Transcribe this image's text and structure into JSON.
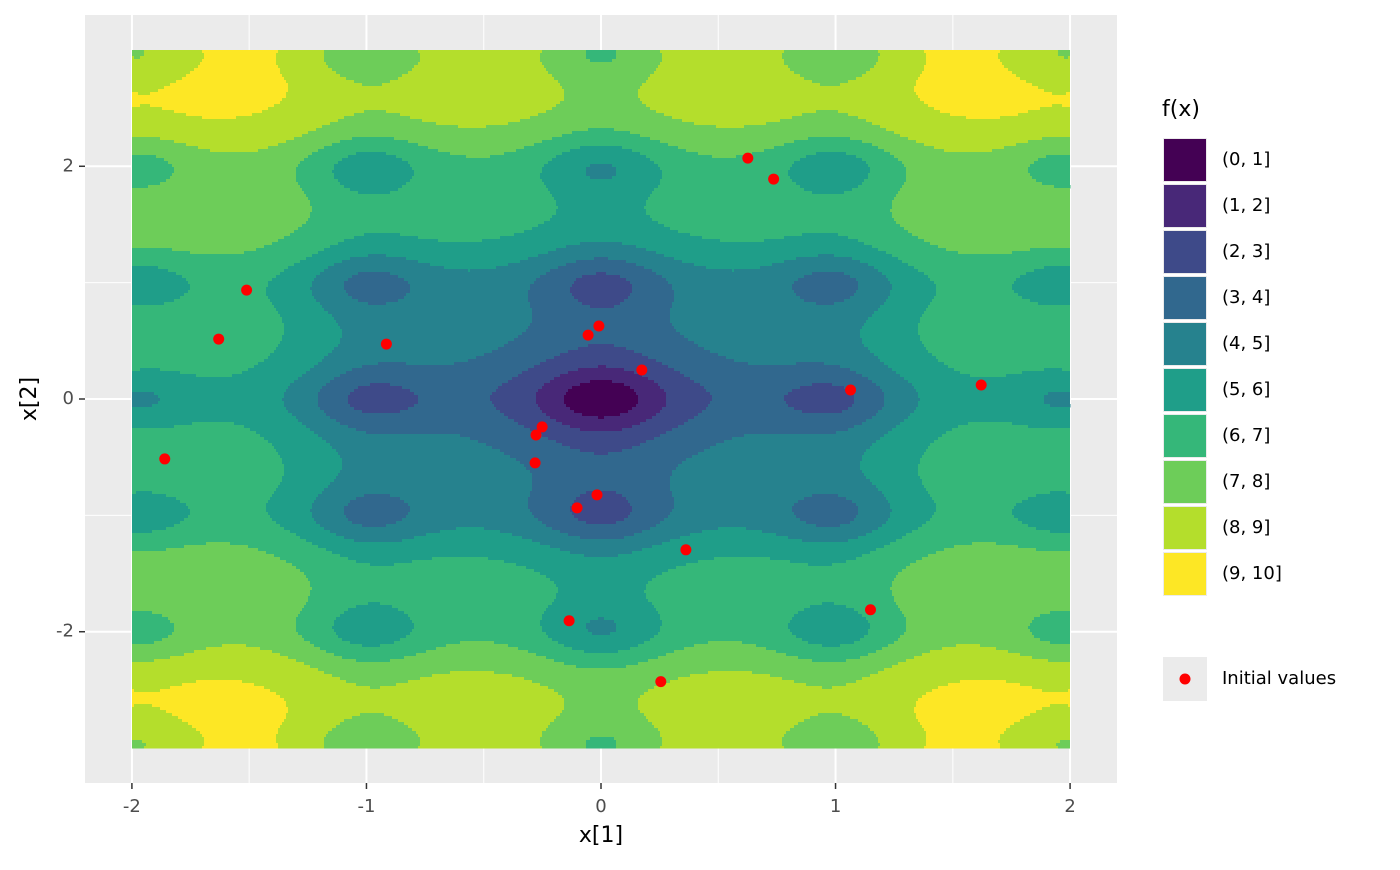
{
  "chart_data": {
    "type": "contour",
    "x_label": "x[1]",
    "y_label": "x[2]",
    "xlim": [
      -2.2,
      2.2
    ],
    "ylim": [
      -3.3,
      3.3
    ],
    "xticks": [
      -2,
      -1,
      0,
      1,
      2
    ],
    "yticks": [
      -2,
      0,
      2
    ],
    "grid": true,
    "contour_x": [
      -2,
      2
    ],
    "contour_y": [
      -3,
      3
    ],
    "fill_legend": {
      "title": "f(x)",
      "breaks": [
        0,
        1,
        2,
        3,
        4,
        5,
        6,
        7,
        8,
        9,
        10
      ],
      "labels": [
        "(0, 1]",
        "(1, 2]",
        "(2, 3]",
        "(3, 4]",
        "(4, 5]",
        "(5, 6]",
        "(6, 7]",
        "(7, 8]",
        "(8, 9]",
        "(9, 10]"
      ],
      "colors": [
        "#440154",
        "#482878",
        "#3E4A89",
        "#31688E",
        "#26828E",
        "#1F9E89",
        "#35B779",
        "#6DCD59",
        "#B4DE2C",
        "#FDE725"
      ]
    },
    "series": [
      {
        "name": "Initial values",
        "color": "#ff0000",
        "x": [
          0.626,
          0.736,
          -1.511,
          -1.63,
          -0.915,
          -0.009,
          -0.055,
          0.174,
          1.064,
          1.621,
          -1.86,
          -0.251,
          -0.277,
          -0.281,
          -0.017,
          -0.102,
          0.362,
          1.149,
          -0.136,
          0.255
        ],
        "values": [
          2.07,
          1.89,
          0.936,
          0.515,
          0.472,
          0.627,
          0.549,
          0.249,
          0.077,
          0.12,
          -0.515,
          -0.24,
          -0.309,
          -0.549,
          -0.824,
          -0.936,
          -1.296,
          -1.811,
          -1.906,
          -2.429
        ]
      }
    ]
  }
}
